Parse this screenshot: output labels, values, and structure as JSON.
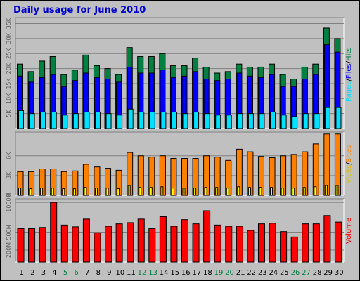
{
  "title": "Daily usage for June 2010",
  "colors": {
    "pages": "#00e0ff",
    "files": "#0000ff",
    "hits": "#008040",
    "visits": "#ffff00",
    "sites": "#ff8000",
    "volume": "#ff0000",
    "weekend_label": "#008040",
    "weekday_label": "#000000",
    "background": "#c0c0c0"
  },
  "chart_data": [
    {
      "type": "bar",
      "panel": "hits",
      "categories": [
        "1",
        "2",
        "3",
        "4",
        "5",
        "6",
        "7",
        "8",
        "9",
        "10",
        "11",
        "12",
        "13",
        "14",
        "15",
        "16",
        "17",
        "18",
        "19",
        "20",
        "21",
        "22",
        "23",
        "24",
        "25",
        "26",
        "27",
        "28",
        "29",
        "30"
      ],
      "weekend_days": [
        "5",
        "6",
        "12",
        "13",
        "19",
        "20",
        "26",
        "27"
      ],
      "ylabel_parts": [
        "Pages",
        "/",
        "Files",
        "/",
        "Hits"
      ],
      "yticks": [
        "5K",
        "10K",
        "15K",
        "20K",
        "25K",
        "30K",
        "35K"
      ],
      "ylim": [
        0,
        37000
      ],
      "series": [
        {
          "name": "Hits",
          "values": [
            21500,
            19000,
            22500,
            24000,
            18000,
            19500,
            24500,
            21000,
            20000,
            18000,
            27000,
            24000,
            24000,
            25000,
            21000,
            21000,
            23500,
            20500,
            18500,
            19000,
            21500,
            20500,
            20500,
            21500,
            18000,
            16500,
            20500,
            21500,
            33500,
            30000
          ]
        },
        {
          "name": "Files",
          "values": [
            17500,
            15500,
            17000,
            18000,
            14000,
            16000,
            18500,
            17000,
            16500,
            15500,
            20500,
            18500,
            18500,
            19500,
            17000,
            17500,
            19000,
            16500,
            16000,
            16500,
            18500,
            17500,
            17000,
            18000,
            14000,
            14000,
            16500,
            18000,
            28000,
            25500
          ]
        },
        {
          "name": "Pages",
          "values": [
            6000,
            5000,
            5500,
            5500,
            4500,
            5000,
            5500,
            5500,
            5000,
            4500,
            6500,
            5500,
            5500,
            5500,
            5500,
            5000,
            5500,
            5000,
            4500,
            4500,
            5000,
            5000,
            5000,
            5500,
            4500,
            4000,
            5000,
            5000,
            7000,
            7000
          ]
        }
      ]
    },
    {
      "type": "bar",
      "panel": "visits",
      "categories": [
        "1",
        "2",
        "3",
        "4",
        "5",
        "6",
        "7",
        "8",
        "9",
        "10",
        "11",
        "12",
        "13",
        "14",
        "15",
        "16",
        "17",
        "18",
        "19",
        "20",
        "21",
        "22",
        "23",
        "24",
        "25",
        "26",
        "27",
        "28",
        "29",
        "30"
      ],
      "ylabel_parts": [
        "Visits",
        "/",
        "Sites"
      ],
      "yticks": [
        "0",
        "3K",
        "6K"
      ],
      "ylim": [
        0,
        9600
      ],
      "series": [
        {
          "name": "Sites",
          "values": [
            3600,
            3600,
            4000,
            4000,
            3600,
            3700,
            4700,
            4300,
            4100,
            3800,
            6500,
            6000,
            5800,
            6000,
            5600,
            5600,
            5600,
            6000,
            5800,
            5300,
            7000,
            6600,
            5900,
            5700,
            6000,
            6200,
            6600,
            7800,
            9300,
            9300
          ]
        },
        {
          "name": "Visits",
          "values": [
            1100,
            1000,
            1100,
            1100,
            1000,
            1000,
            1200,
            1100,
            1100,
            1000,
            1500,
            1200,
            1200,
            1300,
            1100,
            1100,
            1100,
            1200,
            1200,
            1100,
            1300,
            1200,
            1200,
            1200,
            1100,
            1100,
            1200,
            1300,
            1500,
            1500
          ]
        }
      ]
    },
    {
      "type": "bar",
      "panel": "volume",
      "categories": [
        "1",
        "2",
        "3",
        "4",
        "5",
        "6",
        "7",
        "8",
        "9",
        "10",
        "11",
        "12",
        "13",
        "14",
        "15",
        "16",
        "17",
        "18",
        "19",
        "20",
        "21",
        "22",
        "23",
        "24",
        "25",
        "26",
        "27",
        "28",
        "29",
        "30"
      ],
      "ylabel_parts": [
        "Volume"
      ],
      "yticks": [
        "200M",
        "500M",
        "1000M"
      ],
      "ylim": [
        0,
        1060
      ],
      "series": [
        {
          "name": "Volume",
          "values": [
            560,
            560,
            580,
            1000,
            620,
            590,
            720,
            490,
            600,
            640,
            660,
            720,
            560,
            760,
            600,
            710,
            640,
            860,
            620,
            600,
            600,
            530,
            640,
            650,
            510,
            420,
            640,
            640,
            780,
            670
          ]
        }
      ]
    }
  ]
}
